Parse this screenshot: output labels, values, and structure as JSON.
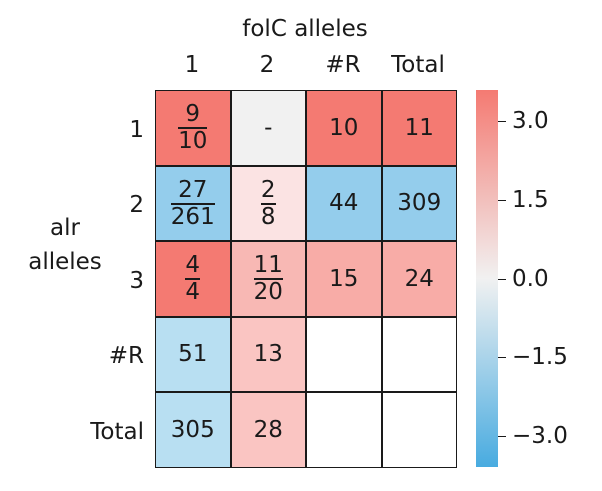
{
  "chart_data": {
    "type": "heatmap",
    "column_title": "folC alleles",
    "row_title": [
      "alr",
      "alleles"
    ],
    "column_labels": [
      "1",
      "2",
      "#R",
      "Total"
    ],
    "row_labels": [
      "1",
      "2",
      "3",
      "#R",
      "Total"
    ],
    "cells": [
      [
        {
          "text": "9/10",
          "frac": [
            "9",
            "10"
          ],
          "color": "#f47a72"
        },
        {
          "text": "-",
          "color": "#f1f1f1"
        },
        {
          "text": "10",
          "color": "#f47a72"
        },
        {
          "text": "11",
          "color": "#f47a72"
        }
      ],
      [
        {
          "text": "27/261",
          "frac": [
            "27",
            "261"
          ],
          "color": "#94cdec"
        },
        {
          "text": "2/8",
          "frac": [
            "2",
            "8"
          ],
          "color": "#fbe3e3"
        },
        {
          "text": "44",
          "color": "#94cdec"
        },
        {
          "text": "309",
          "color": "#94cdec"
        }
      ],
      [
        {
          "text": "4/4",
          "frac": [
            "4",
            "4"
          ],
          "color": "#f47a72"
        },
        {
          "text": "11/20",
          "frac": [
            "11",
            "20"
          ],
          "color": "#f8b8b4"
        },
        {
          "text": "15",
          "color": "#f8aca7"
        },
        {
          "text": "24",
          "color": "#f8aca7"
        }
      ],
      [
        {
          "text": "51",
          "color": "#b8dff2"
        },
        {
          "text": "13",
          "color": "#fac5c2"
        },
        {
          "text": "",
          "color": "#ffffff"
        },
        {
          "text": "",
          "color": "#ffffff"
        }
      ],
      [
        {
          "text": "305",
          "color": "#b8dff2"
        },
        {
          "text": "28",
          "color": "#fac5c2"
        },
        {
          "text": "",
          "color": "#ffffff"
        },
        {
          "text": "",
          "color": "#ffffff"
        }
      ]
    ],
    "colorbar": {
      "vmin": -3.6,
      "vmax": 3.6,
      "ticks": [
        3.0,
        1.5,
        0.0,
        -1.5,
        -3.0
      ],
      "tick_labels": [
        "3.0",
        "1.5",
        "0.0",
        "−1.5",
        "−3.0"
      ],
      "colors": {
        "high": "#f47a72",
        "mid": "#f1f1f1",
        "low": "#48abe0"
      }
    }
  }
}
